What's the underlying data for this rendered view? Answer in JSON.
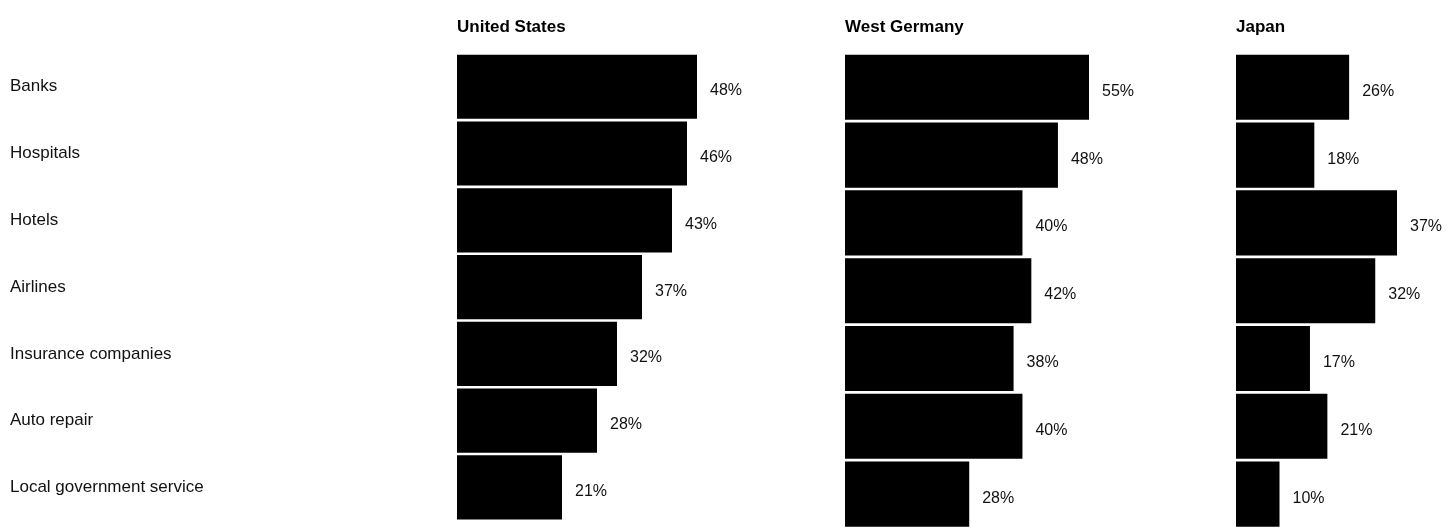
{
  "chart_data": [
    {
      "type": "bar",
      "orientation": "horizontal",
      "title": "United States",
      "categories": [
        "Banks",
        "Hospitals",
        "Hotels",
        "Airlines",
        "Insurance companies",
        "Auto repair",
        "Local government service"
      ],
      "values": [
        48,
        46,
        43,
        37,
        32,
        28,
        21
      ],
      "value_labels": [
        "48%",
        "46%",
        "43%",
        "37%",
        "32%",
        "28%",
        "21%"
      ],
      "color": "#000000",
      "tick_labels": "y"
    },
    {
      "type": "bar",
      "orientation": "horizontal",
      "title": "West Germany",
      "categories": [
        null,
        null,
        null,
        null,
        null,
        null,
        null
      ],
      "values": [
        55,
        48,
        40,
        42,
        38,
        40,
        28
      ],
      "value_labels": [
        "55%",
        "48%",
        "40%",
        "42%",
        "38%",
        "40%",
        "28%"
      ],
      "color": "#000000",
      "tick_labels": false
    },
    {
      "type": "bar",
      "orientation": "horizontal",
      "title": "Japan",
      "categories": [
        null,
        null,
        null,
        null,
        null,
        null,
        null
      ],
      "values": [
        26,
        18,
        37,
        32,
        17,
        21,
        10
      ],
      "value_labels": [
        "26%",
        "18%",
        "37%",
        "32%",
        "17%",
        "21%",
        "10%"
      ],
      "color": "#000000",
      "tick_labels": false
    }
  ]
}
